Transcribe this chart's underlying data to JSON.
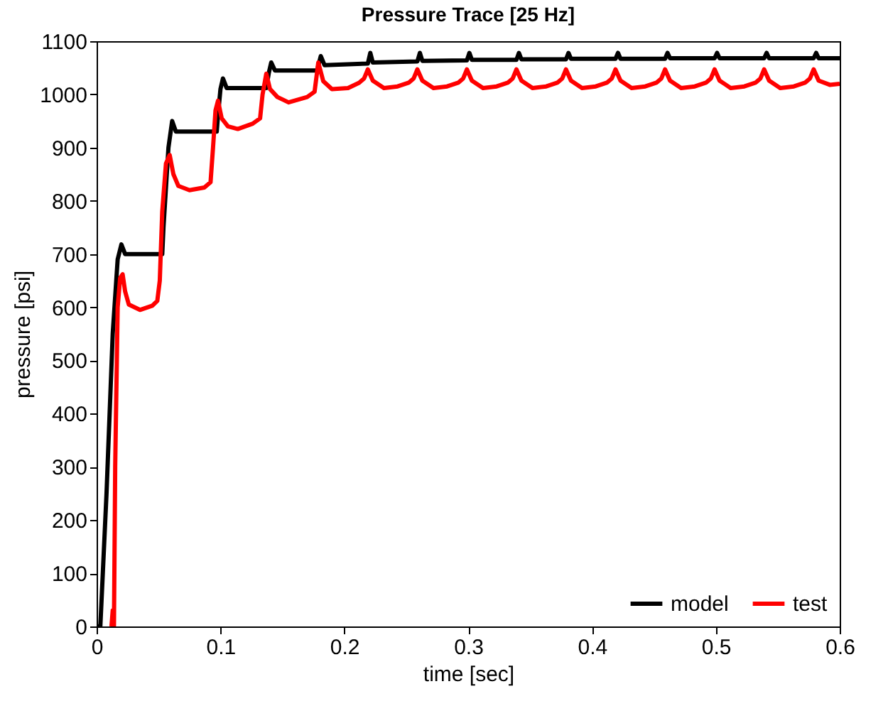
{
  "chart_data": {
    "type": "line",
    "title": "Pressure Trace [25 Hz]",
    "xlabel": "time [sec]",
    "ylabel": "pressure [psi]",
    "xlim": [
      0,
      0.6
    ],
    "xticks": [
      0,
      0.1,
      0.2,
      0.3,
      0.4,
      0.5,
      0.6
    ],
    "ylim": [
      0,
      1100
    ],
    "yticks": [
      0,
      100,
      200,
      300,
      400,
      500,
      600,
      700,
      800,
      900,
      1000,
      1100
    ],
    "grid": false,
    "legend": "bottom right",
    "line_style": "solid",
    "series": [
      {
        "name": "model",
        "color": "#000000",
        "x": [
          0,
          0.003,
          0.008,
          0.013,
          0.017,
          0.02,
          0.023,
          0.053,
          0.054,
          0.058,
          0.061,
          0.064,
          0.097,
          0.098,
          0.1,
          0.102,
          0.105,
          0.137,
          0.139,
          0.141,
          0.144,
          0.178,
          0.181,
          0.184,
          0.219,
          0.221,
          0.223,
          0.259,
          0.261,
          0.263,
          0.299,
          0.301,
          0.303,
          0.339,
          0.341,
          0.343,
          0.379,
          0.381,
          0.383,
          0.419,
          0.421,
          0.423,
          0.459,
          0.461,
          0.463,
          0.499,
          0.501,
          0.503,
          0.539,
          0.541,
          0.543,
          0.579,
          0.581,
          0.583,
          0.6
        ],
        "values": [
          0,
          0,
          250,
          550,
          690,
          718,
          700,
          700,
          750,
          900,
          950,
          930,
          930,
          960,
          1010,
          1030,
          1012,
          1012,
          1040,
          1060,
          1045,
          1045,
          1072,
          1055,
          1058,
          1078,
          1060,
          1062,
          1078,
          1063,
          1064,
          1078,
          1065,
          1065,
          1078,
          1066,
          1066,
          1078,
          1067,
          1067,
          1078,
          1067,
          1067,
          1078,
          1068,
          1068,
          1078,
          1068,
          1068,
          1078,
          1068,
          1068,
          1078,
          1068,
          1068
        ]
      },
      {
        "name": "test",
        "color": "#ff0000",
        "x": [
          0.012,
          0.013,
          0.014,
          0.015,
          0.017,
          0.019,
          0.021,
          0.023,
          0.026,
          0.035,
          0.045,
          0.049,
          0.051,
          0.053,
          0.056,
          0.059,
          0.062,
          0.066,
          0.075,
          0.087,
          0.092,
          0.094,
          0.096,
          0.098,
          0.101,
          0.106,
          0.114,
          0.126,
          0.132,
          0.134,
          0.137,
          0.14,
          0.146,
          0.155,
          0.17,
          0.176,
          0.179,
          0.183,
          0.19,
          0.203,
          0.212,
          0.216,
          0.219,
          0.223,
          0.232,
          0.243,
          0.252,
          0.256,
          0.259,
          0.263,
          0.272,
          0.283,
          0.292,
          0.296,
          0.299,
          0.303,
          0.312,
          0.323,
          0.332,
          0.336,
          0.339,
          0.343,
          0.352,
          0.363,
          0.372,
          0.376,
          0.379,
          0.383,
          0.392,
          0.403,
          0.412,
          0.416,
          0.419,
          0.423,
          0.432,
          0.443,
          0.452,
          0.456,
          0.459,
          0.463,
          0.472,
          0.483,
          0.492,
          0.496,
          0.499,
          0.503,
          0.512,
          0.523,
          0.532,
          0.536,
          0.539,
          0.543,
          0.552,
          0.563,
          0.572,
          0.576,
          0.579,
          0.583,
          0.592,
          0.6
        ],
        "values": [
          0,
          30,
          0,
          300,
          600,
          655,
          662,
          630,
          605,
          595,
          603,
          612,
          650,
          780,
          870,
          886,
          850,
          828,
          820,
          825,
          835,
          900,
          970,
          988,
          955,
          940,
          935,
          945,
          955,
          1000,
          1039,
          1010,
          995,
          985,
          995,
          1005,
          1060,
          1025,
          1010,
          1012,
          1022,
          1030,
          1047,
          1026,
          1012,
          1015,
          1022,
          1030,
          1047,
          1026,
          1012,
          1015,
          1022,
          1030,
          1047,
          1026,
          1012,
          1015,
          1022,
          1030,
          1047,
          1026,
          1012,
          1015,
          1022,
          1030,
          1047,
          1026,
          1012,
          1015,
          1022,
          1030,
          1047,
          1026,
          1012,
          1015,
          1022,
          1030,
          1047,
          1026,
          1012,
          1015,
          1022,
          1030,
          1047,
          1026,
          1012,
          1015,
          1022,
          1030,
          1047,
          1026,
          1012,
          1015,
          1022,
          1030,
          1047,
          1026,
          1018,
          1020
        ]
      }
    ]
  }
}
